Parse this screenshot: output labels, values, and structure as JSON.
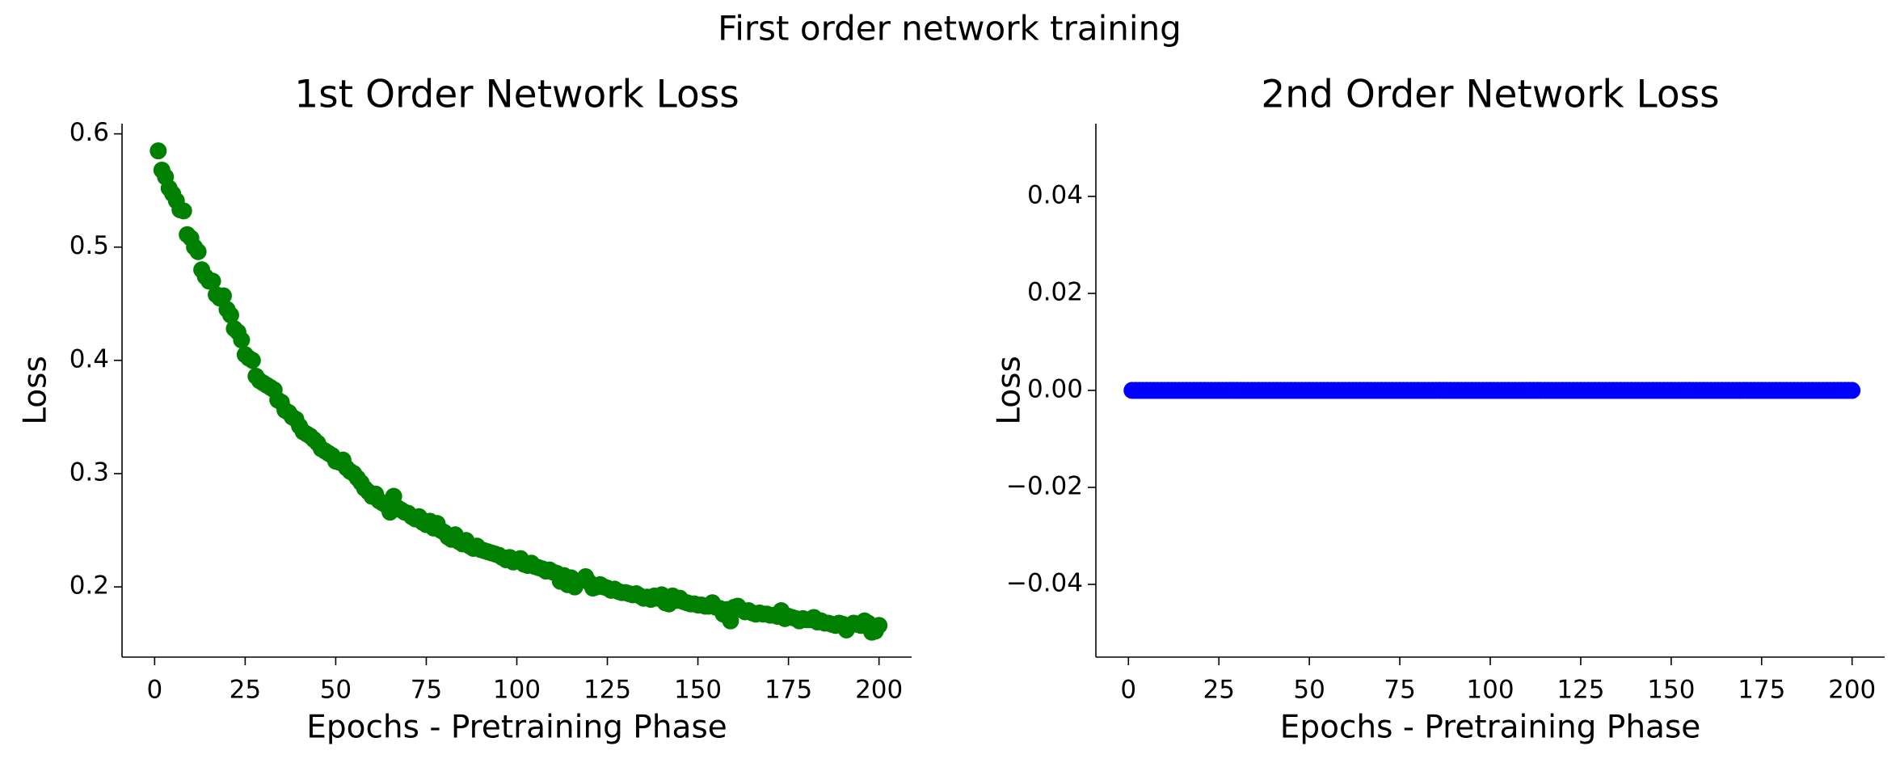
{
  "title": "First order network training",
  "chart_data": [
    {
      "type": "scatter",
      "title": "1st Order Network Loss",
      "xlabel": "Epochs - Pretraining Phase",
      "ylabel": "Loss",
      "color": "#008000",
      "xlim": [
        -9,
        209
      ],
      "xticks": [
        0,
        25,
        50,
        75,
        100,
        125,
        150,
        175,
        200
      ],
      "ylim": [
        0.138,
        0.609
      ],
      "yticks": [
        0.2,
        0.3,
        0.4,
        0.5,
        0.6
      ],
      "x": [
        1,
        2,
        3,
        4,
        5,
        6,
        7,
        8,
        9,
        10,
        11,
        12,
        13,
        14,
        15,
        16,
        17,
        18,
        19,
        20,
        21,
        22,
        23,
        24,
        25,
        26,
        27,
        28,
        29,
        30,
        31,
        32,
        33,
        34,
        35,
        36,
        37,
        38,
        39,
        40,
        41,
        42,
        43,
        44,
        45,
        46,
        47,
        48,
        49,
        50,
        51,
        52,
        53,
        54,
        55,
        56,
        57,
        58,
        59,
        60,
        61,
        62,
        63,
        64,
        65,
        66,
        67,
        68,
        69,
        70,
        71,
        72,
        73,
        74,
        75,
        76,
        77,
        78,
        79,
        80,
        81,
        82,
        83,
        84,
        85,
        86,
        87,
        88,
        89,
        90,
        91,
        92,
        93,
        94,
        95,
        96,
        97,
        98,
        99,
        100,
        101,
        102,
        103,
        104,
        105,
        106,
        107,
        108,
        109,
        110,
        111,
        112,
        113,
        114,
        115,
        116,
        117,
        118,
        119,
        120,
        121,
        122,
        123,
        124,
        125,
        126,
        127,
        128,
        129,
        130,
        131,
        132,
        133,
        134,
        135,
        136,
        137,
        138,
        139,
        140,
        141,
        142,
        143,
        144,
        145,
        146,
        147,
        148,
        149,
        150,
        151,
        152,
        153,
        154,
        155,
        156,
        157,
        158,
        159,
        160,
        161,
        162,
        163,
        164,
        165,
        166,
        167,
        168,
        169,
        170,
        171,
        172,
        173,
        174,
        175,
        176,
        177,
        178,
        179,
        180,
        181,
        182,
        183,
        184,
        185,
        186,
        187,
        188,
        189,
        190,
        191,
        192,
        193,
        194,
        195,
        196,
        197,
        198,
        199,
        200
      ],
      "values": [
        0.585,
        0.568,
        0.562,
        0.552,
        0.547,
        0.541,
        0.533,
        0.532,
        0.511,
        0.508,
        0.5,
        0.496,
        0.48,
        0.474,
        0.47,
        0.47,
        0.458,
        0.455,
        0.457,
        0.445,
        0.44,
        0.428,
        0.425,
        0.418,
        0.405,
        0.402,
        0.4,
        0.386,
        0.382,
        0.38,
        0.378,
        0.376,
        0.374,
        0.365,
        0.363,
        0.356,
        0.354,
        0.35,
        0.348,
        0.342,
        0.337,
        0.335,
        0.333,
        0.33,
        0.327,
        0.322,
        0.32,
        0.318,
        0.316,
        0.311,
        0.31,
        0.312,
        0.305,
        0.302,
        0.3,
        0.296,
        0.292,
        0.287,
        0.284,
        0.28,
        0.282,
        0.276,
        0.274,
        0.272,
        0.266,
        0.28,
        0.27,
        0.268,
        0.266,
        0.265,
        0.262,
        0.26,
        0.262,
        0.257,
        0.255,
        0.258,
        0.252,
        0.256,
        0.25,
        0.248,
        0.244,
        0.242,
        0.246,
        0.24,
        0.238,
        0.241,
        0.236,
        0.234,
        0.236,
        0.233,
        0.232,
        0.231,
        0.23,
        0.229,
        0.228,
        0.226,
        0.224,
        0.226,
        0.222,
        0.224,
        0.225,
        0.22,
        0.219,
        0.221,
        0.218,
        0.217,
        0.216,
        0.214,
        0.215,
        0.213,
        0.212,
        0.205,
        0.21,
        0.202,
        0.208,
        0.2,
        0.205,
        0.206,
        0.209,
        0.204,
        0.199,
        0.2,
        0.202,
        0.2,
        0.199,
        0.197,
        0.198,
        0.196,
        0.195,
        0.195,
        0.194,
        0.193,
        0.194,
        0.192,
        0.19,
        0.191,
        0.189,
        0.192,
        0.19,
        0.193,
        0.186,
        0.185,
        0.192,
        0.188,
        0.19,
        0.187,
        0.186,
        0.185,
        0.185,
        0.184,
        0.184,
        0.183,
        0.183,
        0.186,
        0.182,
        0.181,
        0.176,
        0.18,
        0.17,
        0.182,
        0.183,
        0.18,
        0.178,
        0.179,
        0.177,
        0.176,
        0.177,
        0.176,
        0.176,
        0.175,
        0.175,
        0.174,
        0.179,
        0.172,
        0.174,
        0.173,
        0.172,
        0.17,
        0.172,
        0.171,
        0.171,
        0.173,
        0.169,
        0.17,
        0.168,
        0.168,
        0.167,
        0.166,
        0.168,
        0.167,
        0.162,
        0.166,
        0.168,
        0.167,
        0.166,
        0.17,
        0.168,
        0.16,
        0.161,
        0.166
      ]
    },
    {
      "type": "scatter",
      "title": "2nd Order Network Loss",
      "xlabel": "Epochs - Pretraining Phase",
      "ylabel": "Loss",
      "color": "#0000ff",
      "xlim": [
        -9,
        209
      ],
      "xticks": [
        0,
        25,
        50,
        75,
        100,
        125,
        150,
        175,
        200
      ],
      "ylim": [
        -0.055,
        0.055
      ],
      "yticks": [
        {
          "value": -0.04,
          "label": "−0.04"
        },
        {
          "value": -0.02,
          "label": "−0.02"
        },
        {
          "value": 0,
          "label": "0.00"
        },
        0.02,
        0.04
      ],
      "x": [
        1,
        2,
        3,
        4,
        5,
        6,
        7,
        8,
        9,
        10,
        11,
        12,
        13,
        14,
        15,
        16,
        17,
        18,
        19,
        20,
        21,
        22,
        23,
        24,
        25,
        26,
        27,
        28,
        29,
        30,
        31,
        32,
        33,
        34,
        35,
        36,
        37,
        38,
        39,
        40,
        41,
        42,
        43,
        44,
        45,
        46,
        47,
        48,
        49,
        50,
        51,
        52,
        53,
        54,
        55,
        56,
        57,
        58,
        59,
        60,
        61,
        62,
        63,
        64,
        65,
        66,
        67,
        68,
        69,
        70,
        71,
        72,
        73,
        74,
        75,
        76,
        77,
        78,
        79,
        80,
        81,
        82,
        83,
        84,
        85,
        86,
        87,
        88,
        89,
        90,
        91,
        92,
        93,
        94,
        95,
        96,
        97,
        98,
        99,
        100,
        101,
        102,
        103,
        104,
        105,
        106,
        107,
        108,
        109,
        110,
        111,
        112,
        113,
        114,
        115,
        116,
        117,
        118,
        119,
        120,
        121,
        122,
        123,
        124,
        125,
        126,
        127,
        128,
        129,
        130,
        131,
        132,
        133,
        134,
        135,
        136,
        137,
        138,
        139,
        140,
        141,
        142,
        143,
        144,
        145,
        146,
        147,
        148,
        149,
        150,
        151,
        152,
        153,
        154,
        155,
        156,
        157,
        158,
        159,
        160,
        161,
        162,
        163,
        164,
        165,
        166,
        167,
        168,
        169,
        170,
        171,
        172,
        173,
        174,
        175,
        176,
        177,
        178,
        179,
        180,
        181,
        182,
        183,
        184,
        185,
        186,
        187,
        188,
        189,
        190,
        191,
        192,
        193,
        194,
        195,
        196,
        197,
        198,
        199,
        200
      ],
      "values": [
        0,
        0,
        0,
        0,
        0,
        0,
        0,
        0,
        0,
        0,
        0,
        0,
        0,
        0,
        0,
        0,
        0,
        0,
        0,
        0,
        0,
        0,
        0,
        0,
        0,
        0,
        0,
        0,
        0,
        0,
        0,
        0,
        0,
        0,
        0,
        0,
        0,
        0,
        0,
        0,
        0,
        0,
        0,
        0,
        0,
        0,
        0,
        0,
        0,
        0,
        0,
        0,
        0,
        0,
        0,
        0,
        0,
        0,
        0,
        0,
        0,
        0,
        0,
        0,
        0,
        0,
        0,
        0,
        0,
        0,
        0,
        0,
        0,
        0,
        0,
        0,
        0,
        0,
        0,
        0,
        0,
        0,
        0,
        0,
        0,
        0,
        0,
        0,
        0,
        0,
        0,
        0,
        0,
        0,
        0,
        0,
        0,
        0,
        0,
        0,
        0,
        0,
        0,
        0,
        0,
        0,
        0,
        0,
        0,
        0,
        0,
        0,
        0,
        0,
        0,
        0,
        0,
        0,
        0,
        0,
        0,
        0,
        0,
        0,
        0,
        0,
        0,
        0,
        0,
        0,
        0,
        0,
        0,
        0,
        0,
        0,
        0,
        0,
        0,
        0,
        0,
        0,
        0,
        0,
        0,
        0,
        0,
        0,
        0,
        0,
        0,
        0,
        0,
        0,
        0,
        0,
        0,
        0,
        0,
        0,
        0,
        0,
        0,
        0,
        0,
        0,
        0,
        0,
        0,
        0,
        0,
        0,
        0,
        0,
        0,
        0,
        0,
        0,
        0,
        0,
        0,
        0,
        0,
        0,
        0,
        0,
        0,
        0,
        0,
        0,
        0,
        0,
        0,
        0,
        0,
        0,
        0,
        0,
        0,
        0
      ]
    }
  ]
}
